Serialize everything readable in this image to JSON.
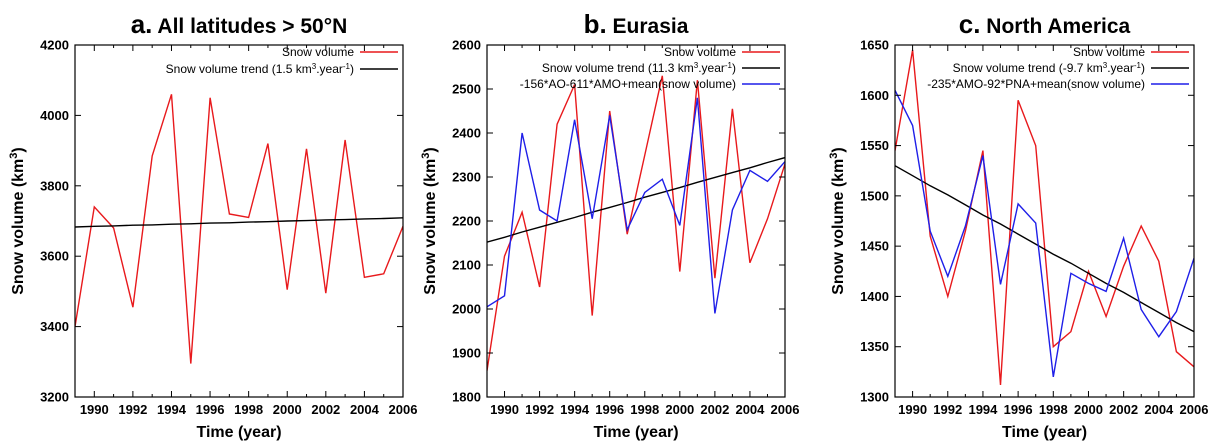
{
  "chart_data": [
    {
      "type": "line",
      "panel_letter": "a.",
      "title": "All latitudes > 50°N",
      "xlabel": "Time (year)",
      "ylabel": "Snow volume (km³)",
      "xlim": [
        1989,
        2006
      ],
      "ylim": [
        3200,
        4200
      ],
      "xticks": [
        1990,
        1992,
        1994,
        1996,
        1998,
        2000,
        2002,
        2004,
        2006
      ],
      "yticks": [
        3200,
        3400,
        3600,
        3800,
        4000,
        4200
      ],
      "x": [
        1989,
        1990,
        1991,
        1992,
        1993,
        1994,
        1995,
        1996,
        1997,
        1998,
        1999,
        2000,
        2001,
        2002,
        2003,
        2004,
        2005,
        2006
      ],
      "series": [
        {
          "name": "Snow volume",
          "color": "#e8191c",
          "values": [
            3400,
            3740,
            3680,
            3455,
            3885,
            4060,
            3295,
            4050,
            3720,
            3710,
            3920,
            3505,
            3905,
            3495,
            3930,
            3540,
            3550,
            3685
          ]
        },
        {
          "name": "Snow volume trend (1.5 km³.year⁻¹)",
          "color": "#000000",
          "values": [
            3683,
            3685,
            3686,
            3688,
            3689,
            3691,
            3692,
            3694,
            3695,
            3697,
            3698,
            3700,
            3701,
            3703,
            3704,
            3706,
            3707,
            3709
          ]
        }
      ],
      "legend_position": "top-right"
    },
    {
      "type": "line",
      "panel_letter": "b.",
      "title": "Eurasia",
      "xlabel": "Time (year)",
      "ylabel": "Snow volume (km³)",
      "xlim": [
        1989,
        2006
      ],
      "ylim": [
        1800,
        2600
      ],
      "xticks": [
        1990,
        1992,
        1994,
        1996,
        1998,
        2000,
        2002,
        2004,
        2006
      ],
      "yticks": [
        1800,
        1900,
        2000,
        2100,
        2200,
        2300,
        2400,
        2500,
        2600
      ],
      "x": [
        1989,
        1990,
        1991,
        1992,
        1993,
        1994,
        1995,
        1996,
        1997,
        1998,
        1999,
        2000,
        2001,
        2002,
        2003,
        2004,
        2005,
        2006
      ],
      "series": [
        {
          "name": "Snow volume",
          "color": "#e8191c",
          "values": [
            1860,
            2120,
            2220,
            2050,
            2420,
            2510,
            1985,
            2450,
            2170,
            2350,
            2530,
            2085,
            2520,
            2070,
            2455,
            2105,
            2205,
            2330
          ]
        },
        {
          "name": "Snow volume trend (11.3 km³.year⁻¹)",
          "color": "#000000",
          "values": [
            2152,
            2163,
            2175,
            2186,
            2197,
            2208,
            2220,
            2231,
            2242,
            2254,
            2265,
            2276,
            2288,
            2299,
            2310,
            2321,
            2333,
            2344
          ]
        },
        {
          "name": "-156*AO-611*AMO+mean(snow volume)",
          "color": "#1f1fe8",
          "values": [
            2005,
            2030,
            2400,
            2225,
            2200,
            2430,
            2205,
            2440,
            2180,
            2265,
            2295,
            2190,
            2480,
            1990,
            2225,
            2315,
            2290,
            2335
          ]
        }
      ],
      "legend_position": "top-right"
    },
    {
      "type": "line",
      "panel_letter": "c.",
      "title": "North America",
      "xlabel": "Time (year)",
      "ylabel": "Snow volume (km³)",
      "xlim": [
        1989,
        2006
      ],
      "ylim": [
        1300,
        1650
      ],
      "xticks": [
        1990,
        1992,
        1994,
        1996,
        1998,
        2000,
        2002,
        2004,
        2006
      ],
      "yticks": [
        1300,
        1350,
        1400,
        1450,
        1500,
        1550,
        1600,
        1650
      ],
      "x": [
        1989,
        1990,
        1991,
        1992,
        1993,
        1994,
        1995,
        1996,
        1997,
        1998,
        1999,
        2000,
        2001,
        2002,
        2003,
        2004,
        2005,
        2006
      ],
      "series": [
        {
          "name": "Snow volume",
          "color": "#e8191c",
          "values": [
            1545,
            1645,
            1460,
            1400,
            1465,
            1545,
            1312,
            1595,
            1550,
            1350,
            1365,
            1425,
            1380,
            1430,
            1470,
            1435,
            1345,
            1330
          ]
        },
        {
          "name": "Snow volume trend (-9.7 km³.year⁻¹)",
          "color": "#000000",
          "values": [
            1530,
            1520,
            1510,
            1501,
            1491,
            1481,
            1472,
            1462,
            1452,
            1442,
            1433,
            1423,
            1413,
            1404,
            1394,
            1384,
            1374,
            1365
          ]
        },
        {
          "name": "-235*AMO-92*PNA+mean(snow volume)",
          "color": "#1f1fe8",
          "values": [
            1605,
            1570,
            1465,
            1420,
            1470,
            1540,
            1412,
            1492,
            1473,
            1320,
            1423,
            1413,
            1405,
            1458,
            1387,
            1360,
            1385,
            1438
          ]
        }
      ],
      "legend_position": "top-right"
    }
  ]
}
